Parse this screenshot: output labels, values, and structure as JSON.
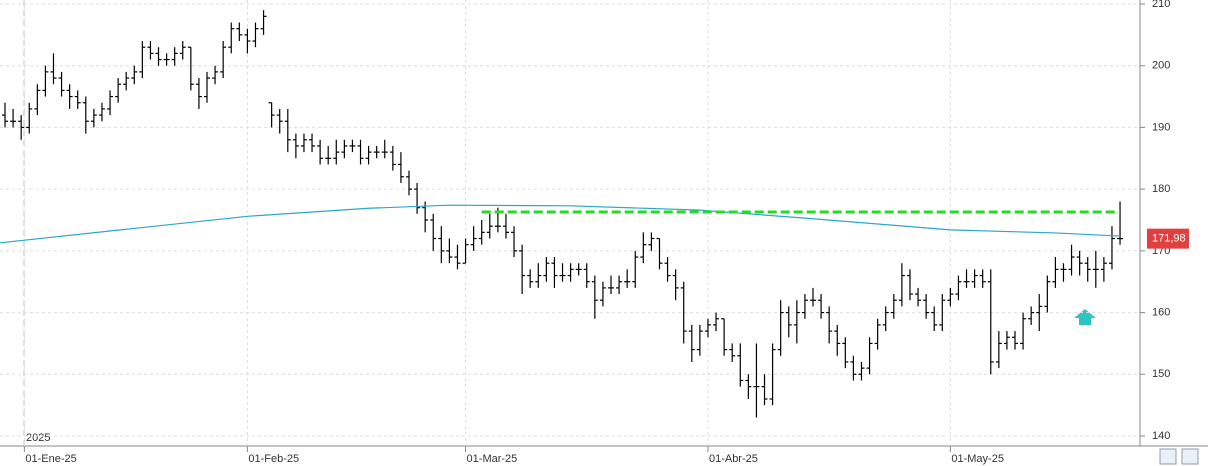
{
  "chart_data": {
    "type": "ohlc",
    "ylim": [
      140,
      210
    ],
    "yticks": [
      140,
      150,
      160,
      170,
      180,
      190,
      200,
      210
    ],
    "grid": true,
    "bar_color": "#000000",
    "year_label": "2025",
    "xticks": [
      {
        "value": 2.4,
        "label": "01-Ene-25"
      },
      {
        "value": 30,
        "label": "01-Feb-25"
      },
      {
        "value": 57,
        "label": "01-Mar-25"
      },
      {
        "value": 87,
        "label": "01-Abr-25"
      },
      {
        "value": 117,
        "label": "01-May-25"
      }
    ],
    "bars": [
      [
        192,
        194,
        190,
        191
      ],
      [
        191,
        193,
        190,
        191
      ],
      [
        191,
        192,
        188,
        190
      ],
      [
        190,
        194,
        189,
        193
      ],
      [
        193,
        197,
        192,
        196
      ],
      [
        196,
        200,
        195,
        199
      ],
      [
        199,
        202,
        197,
        198
      ],
      [
        198,
        199,
        195,
        196
      ],
      [
        196,
        197,
        193,
        195
      ],
      [
        195,
        196,
        193,
        194
      ],
      [
        194,
        195,
        189,
        191
      ],
      [
        191,
        193,
        190,
        192
      ],
      [
        192,
        194,
        191,
        193
      ],
      [
        193,
        196,
        192,
        195
      ],
      [
        195,
        198,
        194,
        197
      ],
      [
        197,
        199,
        196,
        198
      ],
      [
        198,
        200,
        197,
        199
      ],
      [
        199,
        204,
        198,
        203
      ],
      [
        203,
        204,
        201,
        202
      ],
      [
        202,
        203,
        200,
        201
      ],
      [
        201,
        202,
        200,
        201
      ],
      [
        201,
        203,
        200,
        202
      ],
      [
        202,
        204,
        201,
        203
      ],
      [
        203,
        203,
        196,
        197
      ],
      [
        197,
        198,
        193,
        195
      ],
      [
        195,
        199,
        194,
        198
      ],
      [
        198,
        200,
        197,
        199
      ],
      [
        199,
        204,
        198,
        203
      ],
      [
        203,
        207,
        202,
        206
      ],
      [
        206,
        207,
        204,
        205
      ],
      [
        205,
        206,
        202,
        204
      ],
      [
        204,
        207,
        203,
        206
      ],
      [
        206,
        209,
        205,
        208
      ],
      [
        194,
        194,
        190,
        192
      ],
      [
        192,
        193,
        189,
        191
      ],
      [
        191,
        193,
        186,
        188
      ],
      [
        188,
        189,
        185,
        187
      ],
      [
        187,
        189,
        186,
        188
      ],
      [
        188,
        189,
        186,
        187
      ],
      [
        187,
        188,
        184,
        185
      ],
      [
        185,
        187,
        184,
        185
      ],
      [
        185,
        188,
        184,
        186
      ],
      [
        186,
        188,
        185,
        187
      ],
      [
        187,
        188,
        186,
        187
      ],
      [
        187,
        188,
        184,
        185
      ],
      [
        185,
        187,
        184,
        186
      ],
      [
        186,
        187,
        185,
        186
      ],
      [
        186,
        188,
        185,
        186
      ],
      [
        186,
        187,
        183,
        184
      ],
      [
        184,
        186,
        181,
        182
      ],
      [
        182,
        183,
        179,
        180
      ],
      [
        180,
        181,
        176,
        177
      ],
      [
        177,
        178,
        173,
        175
      ],
      [
        175,
        176,
        170,
        172
      ],
      [
        172,
        174,
        168,
        170
      ],
      [
        170,
        172,
        168,
        169
      ],
      [
        169,
        171,
        167,
        168
      ],
      [
        168,
        172,
        168,
        171
      ],
      [
        171,
        174,
        170,
        172
      ],
      [
        172,
        175,
        171,
        173
      ],
      [
        173,
        176,
        172,
        174
      ],
      [
        174,
        177,
        173,
        174
      ],
      [
        174,
        176,
        172,
        173
      ],
      [
        173,
        174,
        169,
        170
      ],
      [
        170,
        171,
        163,
        166
      ],
      [
        166,
        167,
        164,
        165
      ],
      [
        165,
        168,
        164,
        166
      ],
      [
        166,
        169,
        165,
        168
      ],
      [
        168,
        169,
        164,
        166
      ],
      [
        166,
        168,
        165,
        166
      ],
      [
        166,
        168,
        165,
        167
      ],
      [
        167,
        168,
        166,
        167
      ],
      [
        167,
        168,
        164,
        165
      ],
      [
        165,
        166,
        159,
        162
      ],
      [
        162,
        165,
        161,
        164
      ],
      [
        164,
        166,
        163,
        164
      ],
      [
        164,
        166,
        163,
        165
      ],
      [
        165,
        167,
        164,
        165
      ],
      [
        165,
        170,
        164,
        169
      ],
      [
        169,
        173,
        168,
        171
      ],
      [
        171,
        173,
        170,
        172
      ],
      [
        172,
        172,
        167,
        168
      ],
      [
        168,
        169,
        165,
        166
      ],
      [
        166,
        167,
        162,
        164
      ],
      [
        164,
        165,
        155,
        157
      ],
      [
        157,
        158,
        152,
        154
      ],
      [
        154,
        158,
        153,
        157
      ],
      [
        157,
        159,
        156,
        158
      ],
      [
        158,
        160,
        157,
        159
      ],
      [
        159,
        159,
        153,
        154
      ],
      [
        154,
        155,
        152,
        153
      ],
      [
        153,
        155,
        148,
        149
      ],
      [
        149,
        150,
        146,
        148
      ],
      [
        148,
        155,
        143,
        148
      ],
      [
        148,
        150,
        145,
        146
      ],
      [
        146,
        155,
        145,
        154
      ],
      [
        154,
        162,
        153,
        160
      ],
      [
        160,
        161,
        156,
        158
      ],
      [
        158,
        162,
        155,
        160
      ],
      [
        160,
        163,
        159,
        162
      ],
      [
        162,
        164,
        161,
        162
      ],
      [
        162,
        163,
        159,
        160
      ],
      [
        160,
        161,
        155,
        157
      ],
      [
        157,
        158,
        153,
        155
      ],
      [
        155,
        156,
        151,
        152
      ],
      [
        152,
        153,
        149,
        150
      ],
      [
        150,
        152,
        149,
        151
      ],
      [
        151,
        156,
        150,
        155
      ],
      [
        155,
        159,
        154,
        158
      ],
      [
        158,
        161,
        157,
        160
      ],
      [
        160,
        163,
        159,
        162
      ],
      [
        162,
        168,
        161,
        166
      ],
      [
        166,
        167,
        162,
        163
      ],
      [
        163,
        164,
        161,
        162
      ],
      [
        162,
        163,
        159,
        160
      ],
      [
        160,
        161,
        157,
        158
      ],
      [
        158,
        163,
        157,
        162
      ],
      [
        162,
        164,
        161,
        163
      ],
      [
        163,
        166,
        162,
        165
      ],
      [
        165,
        167,
        164,
        165
      ],
      [
        165,
        167,
        164,
        166
      ],
      [
        166,
        167,
        164,
        165
      ],
      [
        165,
        167,
        150,
        152
      ],
      [
        152,
        157,
        151,
        155
      ],
      [
        155,
        157,
        154,
        156
      ],
      [
        156,
        157,
        154,
        155
      ],
      [
        155,
        160,
        154,
        159
      ],
      [
        159,
        161,
        158,
        160
      ],
      [
        160,
        163,
        157,
        161
      ],
      [
        161,
        166,
        160,
        165
      ],
      [
        165,
        169,
        164,
        167
      ],
      [
        167,
        168,
        165,
        167
      ],
      [
        167,
        171,
        166,
        169
      ],
      [
        169,
        170,
        166,
        168
      ],
      [
        168,
        169,
        165,
        167
      ],
      [
        167,
        170,
        164,
        167
      ],
      [
        167,
        169,
        165,
        168
      ],
      [
        168,
        174,
        167,
        172
      ],
      [
        172,
        178,
        171,
        171.98
      ]
    ],
    "moving_average": {
      "color": "#2aa7c9",
      "x": [
        -1,
        15,
        30,
        45,
        55,
        70,
        86,
        100,
        117,
        130,
        138
      ],
      "values": [
        171.3,
        173.5,
        175.6,
        176.9,
        177.4,
        177.3,
        176.6,
        175.2,
        173.4,
        172.9,
        172.4
      ]
    },
    "resistance": {
      "value": 176.3,
      "from": 59,
      "to": 138,
      "color": "#22dd22"
    },
    "last_price": {
      "value": 171.98,
      "label": "171,98",
      "color": "#e04040"
    }
  }
}
